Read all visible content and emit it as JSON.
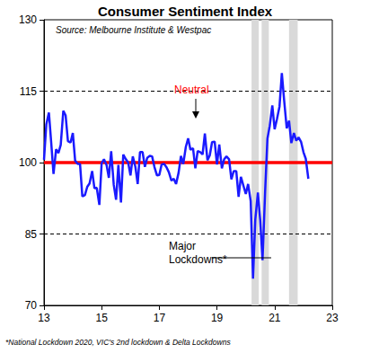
{
  "chart_data": {
    "type": "line",
    "title": "Consumer Sentiment Index",
    "subtitle": "Source: Melbourne Institute & Westpac",
    "footnote": "*National Lockdown 2020, VIC's 2nd lockdown & Delta Lockdowns",
    "annotations": [
      {
        "text": "Neutral",
        "color": "#ff0000"
      },
      {
        "text": "Major Lockdowns*"
      }
    ],
    "reference_line": {
      "value": 100,
      "color": "#ff0000"
    },
    "shaded_periods": [
      [
        20.2,
        20.45
      ],
      [
        20.55,
        20.8
      ],
      [
        21.5,
        21.8
      ]
    ],
    "grid": true,
    "xlim": [
      13,
      23
    ],
    "xticks": [
      13,
      15,
      17,
      19,
      21,
      23
    ],
    "ylim": [
      70,
      130
    ],
    "yticks": [
      70,
      85,
      100,
      115,
      130
    ],
    "series": [
      {
        "name": "Consumer Sentiment Index",
        "color": "#1a1aff",
        "x": [
          13.0,
          13.08,
          13.17,
          13.25,
          13.33,
          13.42,
          13.5,
          13.58,
          13.67,
          13.75,
          13.83,
          13.92,
          14.0,
          14.08,
          14.17,
          14.25,
          14.33,
          14.42,
          14.5,
          14.58,
          14.67,
          14.75,
          14.83,
          14.92,
          15.0,
          15.08,
          15.17,
          15.25,
          15.33,
          15.42,
          15.5,
          15.58,
          15.67,
          15.75,
          15.83,
          15.92,
          16.0,
          16.08,
          16.17,
          16.25,
          16.33,
          16.42,
          16.5,
          16.58,
          16.67,
          16.75,
          16.83,
          16.92,
          17.0,
          17.08,
          17.17,
          17.25,
          17.33,
          17.42,
          17.5,
          17.58,
          17.67,
          17.75,
          17.83,
          17.92,
          18.0,
          18.08,
          18.17,
          18.25,
          18.33,
          18.42,
          18.5,
          18.58,
          18.67,
          18.75,
          18.83,
          18.92,
          19.0,
          19.08,
          19.17,
          19.25,
          19.33,
          19.42,
          19.5,
          19.58,
          19.67,
          19.75,
          19.83,
          19.92,
          20.0,
          20.08,
          20.17,
          20.25,
          20.33,
          20.42,
          20.5,
          20.58,
          20.67,
          20.75,
          20.83,
          20.92,
          21.0,
          21.08,
          21.17,
          21.25,
          21.33,
          21.42,
          21.5,
          21.58,
          21.67,
          21.75,
          21.83,
          21.92,
          22.0,
          22.08,
          22.17
        ],
        "values": [
          100.6,
          108.0,
          110.5,
          104.2,
          97.6,
          102.8,
          102.0,
          103.7,
          110.9,
          109.9,
          104.5,
          104.2,
          106.2,
          100.4,
          99.7,
          99.7,
          92.9,
          93.2,
          94.9,
          95.6,
          98.2,
          94.6,
          94.7,
          91.1,
          99.9,
          100.7,
          99.5,
          96.8,
          102.4,
          95.3,
          92.2,
          99.5,
          91.6,
          101.7,
          100.8,
          100.0,
          97.3,
          101.3,
          99.1,
          95.5,
          102.2,
          102.2,
          99.1,
          101.0,
          101.4,
          101.3,
          99.1,
          97.3,
          97.4,
          99.6,
          99.7,
          99.0,
          98.0,
          96.2,
          96.6,
          95.5,
          97.9,
          101.4,
          99.7,
          103.3,
          105.1,
          102.7,
          103.0,
          98.8,
          102.4,
          102.2,
          101.7,
          106.1,
          100.5,
          101.5,
          104.3,
          104.4,
          99.6,
          103.8,
          98.8,
          100.7,
          101.3,
          100.7,
          96.5,
          98.2,
          98.2,
          92.8,
          97.0,
          95.1,
          93.4,
          95.5,
          91.9,
          75.6,
          88.1,
          93.7,
          87.9,
          79.5,
          93.8,
          105.0,
          107.7,
          112.0,
          107.0,
          109.1,
          111.8,
          118.8,
          113.1,
          107.2,
          108.8,
          104.1,
          106.2,
          104.6,
          105.3,
          104.3,
          102.2,
          100.8,
          96.6
        ]
      }
    ]
  }
}
